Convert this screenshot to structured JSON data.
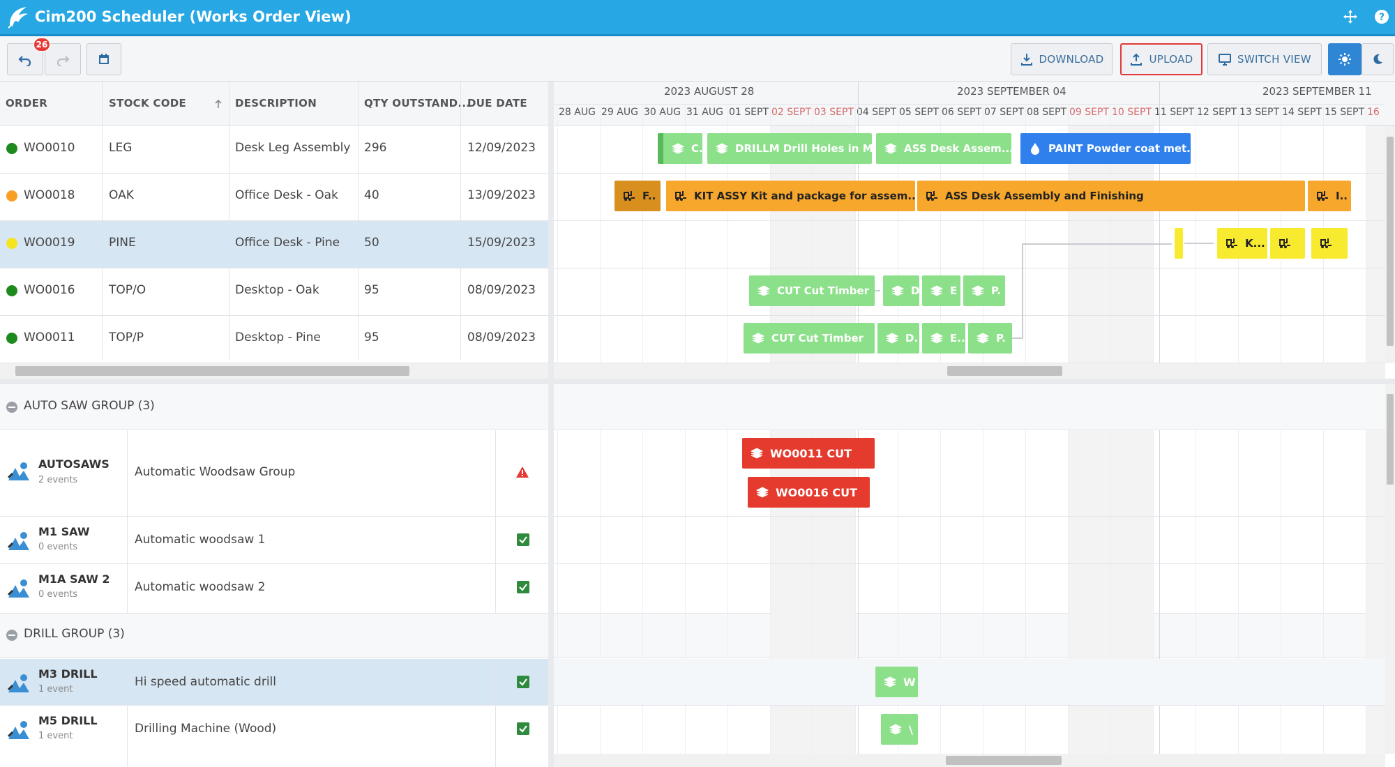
{
  "app": {
    "title": "Cim200 Scheduler (Works Order View)"
  },
  "toolbar": {
    "undo_count": "26",
    "download": "DOWNLOAD",
    "upload": "UPLOAD",
    "switch_view": "SWITCH VIEW"
  },
  "orders": {
    "columns": [
      "ORDER",
      "STOCK CODE",
      "DESCRIPTION",
      "QTY OUTSTAND...",
      "DUE DATE"
    ],
    "rows": [
      {
        "order": "WO0010",
        "stock": "LEG",
        "desc": "Desk Leg Assembly",
        "qty": "296",
        "due": "12/09/2023",
        "status_color": "#1e8a1e"
      },
      {
        "order": "WO0018",
        "stock": "OAK",
        "desc": "Office Desk - Oak",
        "qty": "40",
        "due": "13/09/2023",
        "status_color": "#f7a024"
      },
      {
        "order": "WO0019",
        "stock": "PINE",
        "desc": "Office Desk - Pine",
        "qty": "50",
        "due": "15/09/2023",
        "status_color": "#f5e521"
      },
      {
        "order": "WO0016",
        "stock": "TOP/O",
        "desc": "Desktop - Oak",
        "qty": "95",
        "due": "08/09/2023",
        "status_color": "#1e8a1e"
      },
      {
        "order": "WO0011",
        "stock": "TOP/P",
        "desc": "Desktop - Pine",
        "qty": "95",
        "due": "08/09/2023",
        "status_color": "#1e8a1e"
      }
    ]
  },
  "timeline": {
    "weeks": [
      "2023 AUGUST 28",
      "2023 SEPTEMBER 04",
      "2023 SEPTEMBER 11"
    ],
    "days": [
      "28 AUG",
      "29 AUG",
      "30 AUG",
      "31 AUG",
      "01 SEPT",
      "02 SEPT",
      "03 SEPT",
      "04 SEPT",
      "05 SEPT",
      "06 SEPT",
      "07 SEPT",
      "08 SEPT",
      "09 SEPT",
      "10 SEPT",
      "11 SEPT",
      "12 SEPT",
      "13 SEPT",
      "14 SEPT",
      "15 SEPT",
      "16"
    ]
  },
  "bars": {
    "r0": [
      "C.",
      "DRILLM Drill Holes in M...",
      "ASS Desk Assem...",
      "PAINT Powder coat met..."
    ],
    "r1": [
      "F..",
      "KIT ASSY Kit and package for assem...",
      "ASS Desk Assembly and Finishing",
      "I.."
    ],
    "r2": [
      "K..."
    ],
    "r3": [
      "CUT Cut Timber",
      "D",
      "E",
      "P."
    ],
    "r4": [
      "CUT Cut Timber",
      "D.",
      "E..",
      "P."
    ]
  },
  "resources": {
    "groups": [
      {
        "label": "AUTO SAW GROUP (3)"
      },
      {
        "label": "DRILL GROUP (3)"
      }
    ],
    "rows": [
      {
        "name": "AUTOSAWS",
        "events": "2 events",
        "desc": "Automatic Woodsaw Group"
      },
      {
        "name": "M1 SAW",
        "events": "0 events",
        "desc": "Automatic woodsaw 1"
      },
      {
        "name": "M1A SAW 2",
        "events": "0 events",
        "desc": "Automatic woodsaw 2"
      },
      {
        "name": "M3 DRILL",
        "events": "1 event",
        "desc": "Hi speed automatic drill"
      },
      {
        "name": "M5 DRILL",
        "events": "1 event",
        "desc": "Drilling Machine (Wood)"
      }
    ]
  },
  "events": {
    "e1": "WO0011 CUT",
    "e2": "WO0016 CUT",
    "e3": "W",
    "e4": "\\"
  },
  "colors": {
    "accent": "#27a7e3",
    "green": "#8ce08a",
    "orange": "#f7a72b",
    "yellow": "#f8ea2f",
    "blue": "#2f80ed",
    "red": "#e53b2e"
  }
}
